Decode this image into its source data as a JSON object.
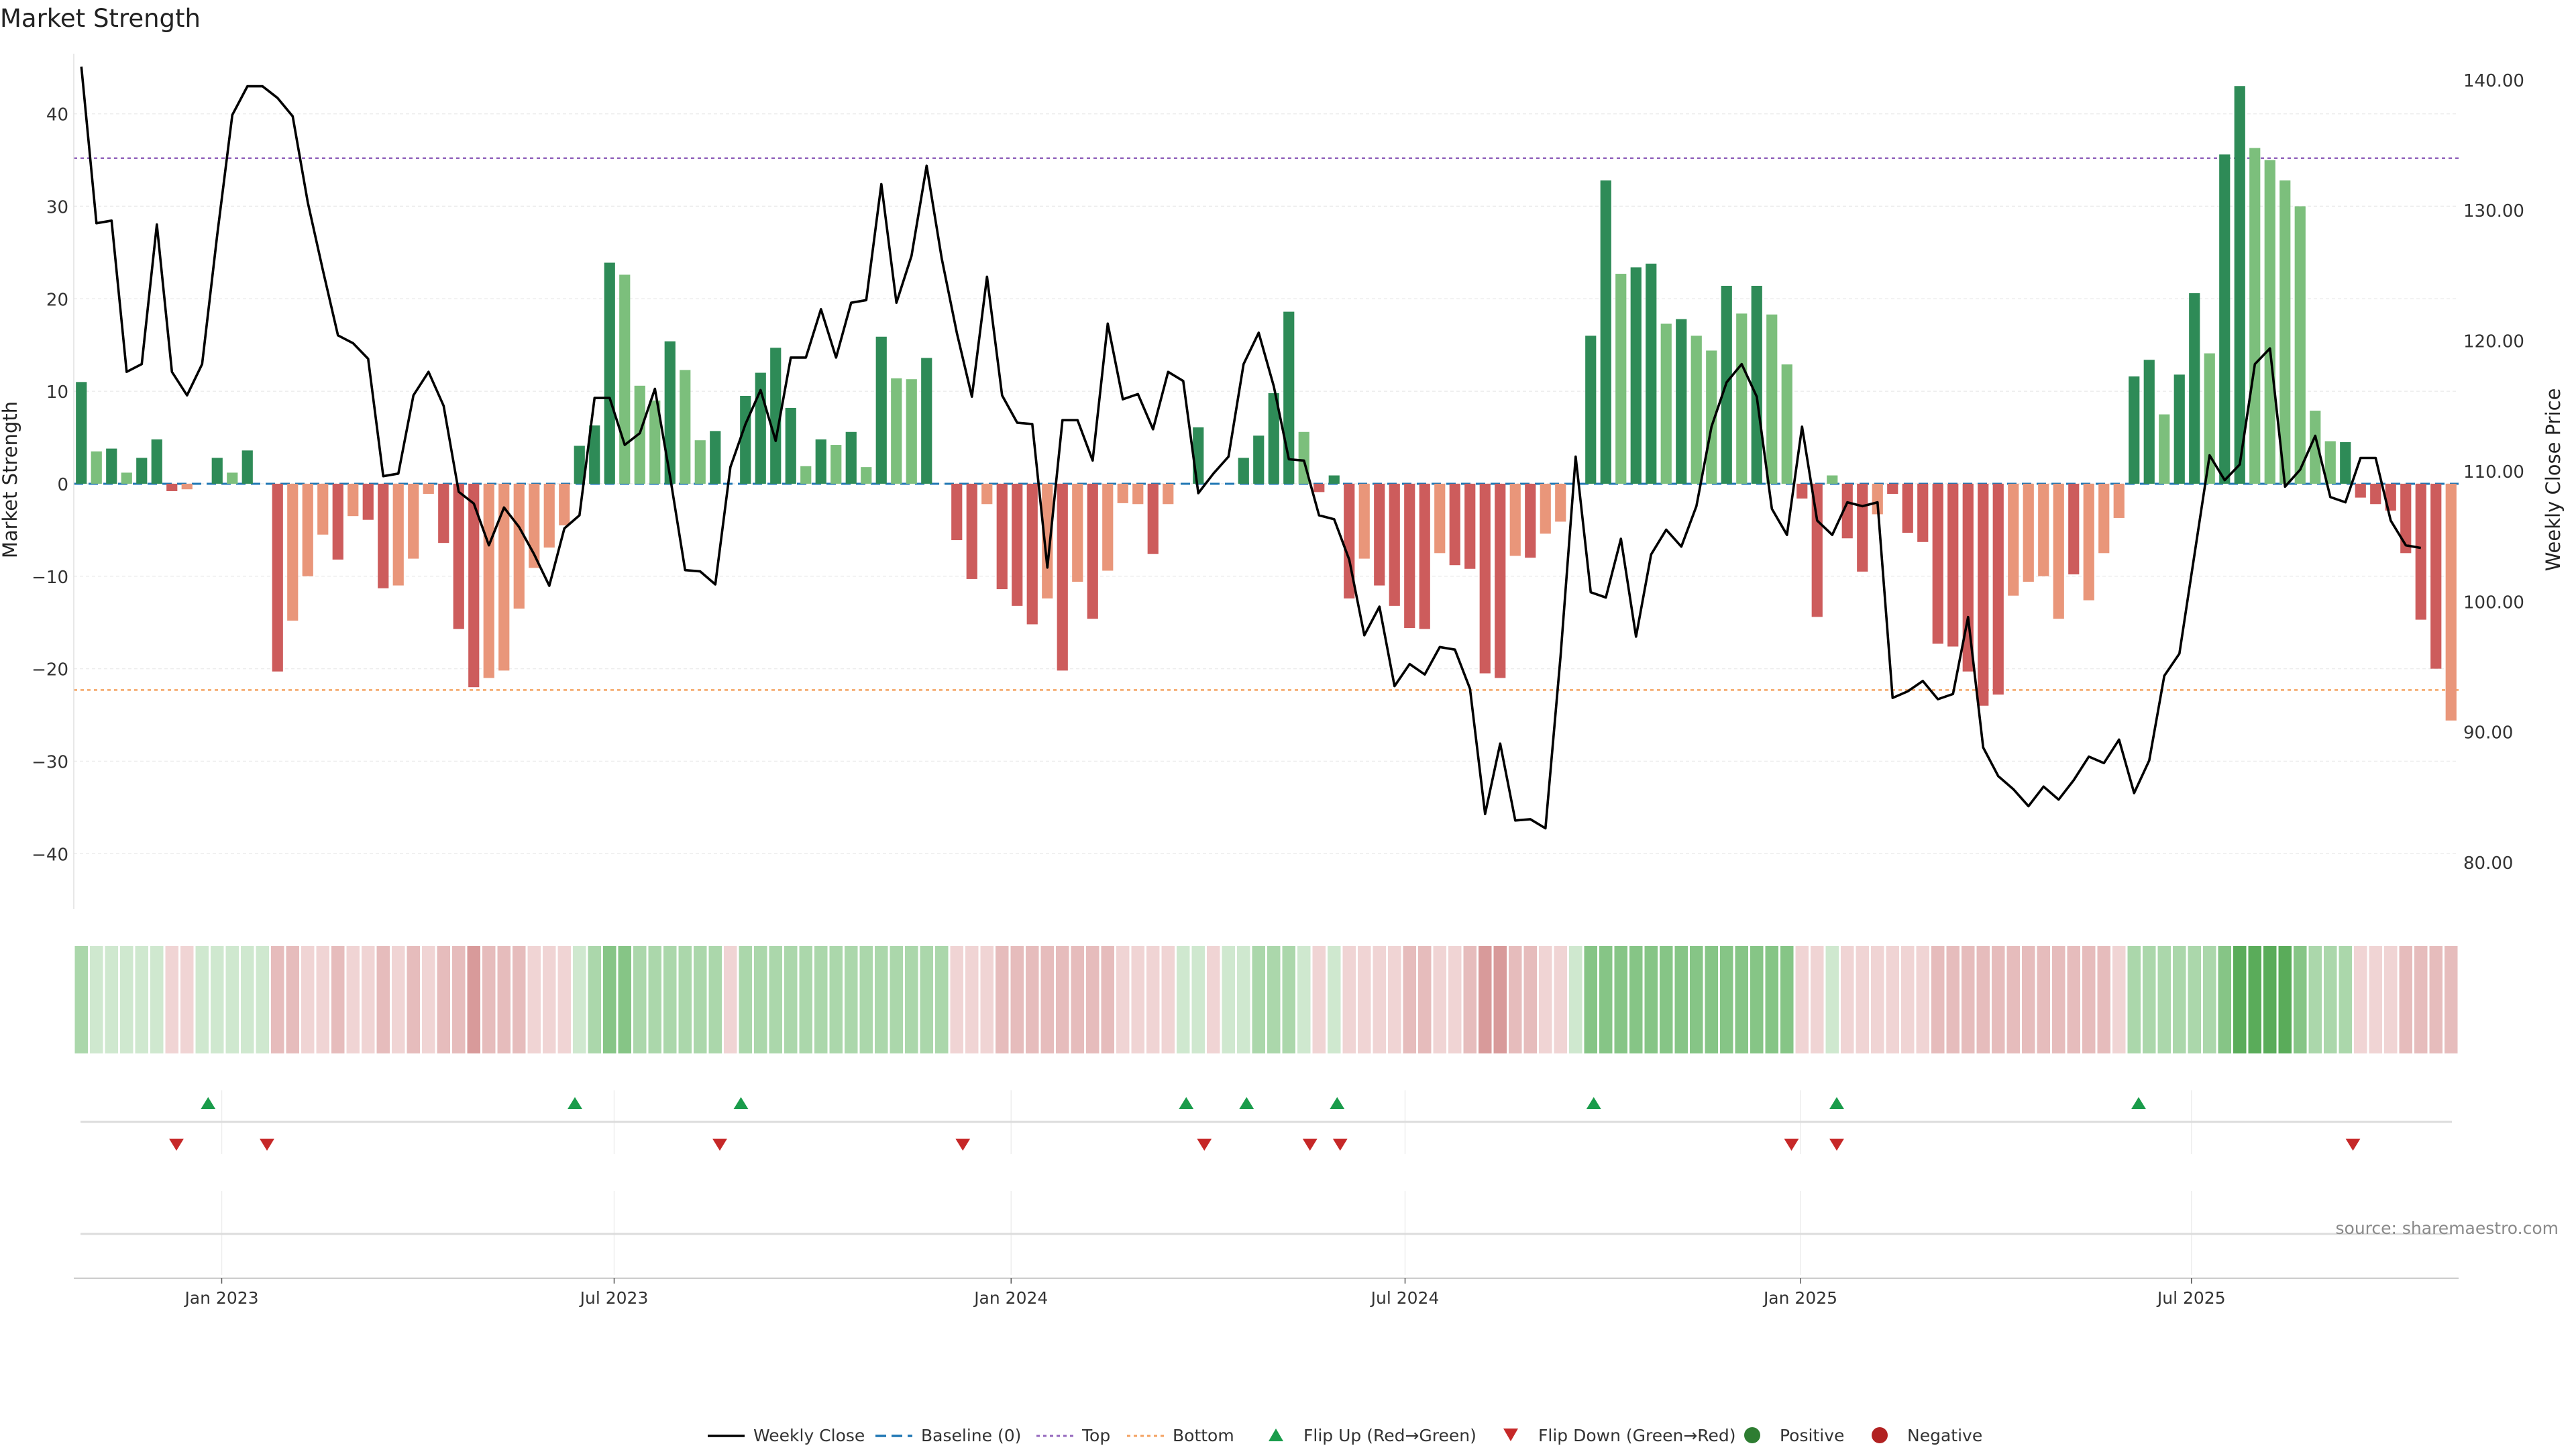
{
  "colors": {
    "dark_green": "#2e8b57",
    "light_green": "#7cbf7c",
    "dark_red": "#cd5c5c",
    "light_red": "#e9967a",
    "price_line": "#000000",
    "top_line": "#9467bd",
    "bottom_line": "#f4a261",
    "baseline": "#1f77b4",
    "flip_up": "#1a9c4b",
    "flip_down": "#c62828",
    "positive_dot": "#2e7d32",
    "negative_dot": "#b22222"
  },
  "chart_data": {
    "type": "bar",
    "title": "Market Strength",
    "ylabel": "Market Strength",
    "y2label": "Weekly Close Price",
    "ylim": [
      -46,
      46.5
    ],
    "y2lim": [
      76.4,
      142
    ],
    "yticks": [
      -40,
      -30,
      -20,
      -10,
      0,
      10,
      20,
      30,
      40
    ],
    "yticklabels": [
      "−40",
      "−30",
      "−20",
      "−10",
      "0",
      "10",
      "20",
      "30",
      "40"
    ],
    "y2ticks": [
      80,
      90,
      100,
      110,
      120,
      130,
      140
    ],
    "y2ticklabels": [
      "80.00",
      "90.00",
      "100.00",
      "110.00",
      "120.00",
      "130.00",
      "140.00"
    ],
    "xticklabels": [
      "Jan 2023",
      "Jul 2023",
      "Jan 2024",
      "Jul 2024",
      "Jan 2025",
      "Jul 2025"
    ],
    "xtick_index": [
      9.3,
      35.3,
      61.6,
      87.7,
      113.9,
      139.8
    ],
    "top_level": 35.2,
    "bottom_level": -22.3,
    "grid": true,
    "legend_position": "bottom-center",
    "strength": [
      11,
      3.5,
      3.8,
      1.2,
      2.8,
      4.8,
      -0.8,
      -0.6,
      0,
      2.8,
      1.2,
      3.6,
      0,
      -20.3,
      -14.8,
      -10,
      -5.5,
      -8.2,
      -3.5,
      -3.9,
      -11.3,
      -11,
      -8.1,
      -1.1,
      -6.4,
      -15.7,
      -22,
      -21,
      -20.2,
      -13.5,
      -9.1,
      -6.9,
      -4.5,
      4.1,
      6.3,
      23.9,
      22.6,
      10.6,
      9,
      15.4,
      12.3,
      4.7,
      5.7,
      0,
      9.5,
      12,
      14.7,
      8.2,
      1.9,
      4.8,
      4.2,
      5.6,
      1.8,
      15.9,
      11.4,
      11.3,
      13.6,
      0,
      -6.1,
      -10.3,
      -2.2,
      -11.4,
      -13.2,
      -15.2,
      -12.4,
      -20.2,
      -10.6,
      -14.6,
      -9.4,
      -2.1,
      -2.2,
      -7.6,
      -2.2,
      0,
      6.1,
      0,
      0,
      2.8,
      5.2,
      9.8,
      18.6,
      5.6,
      -0.9,
      0.9,
      -12.4,
      -8.1,
      -11,
      -13.2,
      -15.6,
      -15.7,
      -7.5,
      -8.8,
      -9.2,
      -20.5,
      -21,
      -7.8,
      -8,
      -5.4,
      -4.1,
      0,
      16,
      32.8,
      22.7,
      23.4,
      23.8,
      17.3,
      17.8,
      16,
      14.4,
      21.4,
      18.4,
      21.4,
      18.3,
      12.9,
      -1.6,
      -14.4,
      0.9,
      -5.9,
      -9.5,
      -3.3,
      -1.1,
      -5.3,
      -6.3,
      -17.3,
      -17.6,
      -20.3,
      -24,
      -22.8,
      -12.1,
      -10.6,
      -10,
      -14.6,
      -9.8,
      -12.6,
      -7.5,
      -3.7,
      11.6,
      13.4,
      7.5,
      11.8,
      20.6,
      14.1,
      35.6,
      43,
      36.3,
      35,
      32.8,
      30,
      7.9,
      4.6,
      4.5,
      -1.5,
      -2.2,
      -2.9,
      -7.5,
      -14.7,
      -20,
      -25.6
    ],
    "strength_shade": [
      "d",
      "l",
      "d",
      "l",
      "d",
      "d",
      "d",
      "l",
      "d",
      "d",
      "l",
      "d",
      "d",
      "d",
      "l",
      "l",
      "l",
      "d",
      "l",
      "d",
      "d",
      "l",
      "l",
      "l",
      "d",
      "d",
      "d",
      "l",
      "l",
      "l",
      "l",
      "l",
      "l",
      "d",
      "d",
      "d",
      "l",
      "l",
      "l",
      "d",
      "l",
      "l",
      "d",
      "d",
      "d",
      "d",
      "d",
      "d",
      "l",
      "d",
      "l",
      "d",
      "l",
      "d",
      "l",
      "l",
      "d",
      "d",
      "d",
      "d",
      "l",
      "d",
      "d",
      "d",
      "l",
      "d",
      "l",
      "d",
      "l",
      "l",
      "l",
      "d",
      "l",
      "d",
      "d",
      "d",
      "d",
      "d",
      "d",
      "d",
      "d",
      "l",
      "d",
      "d",
      "d",
      "l",
      "d",
      "d",
      "d",
      "d",
      "l",
      "d",
      "d",
      "d",
      "d",
      "l",
      "d",
      "l",
      "l",
      "d",
      "d",
      "d",
      "l",
      "d",
      "d",
      "l",
      "d",
      "l",
      "l",
      "d",
      "l",
      "d",
      "l",
      "l",
      "d",
      "d",
      "l",
      "d",
      "d",
      "l",
      "d",
      "d",
      "d",
      "d",
      "d",
      "d",
      "d",
      "d",
      "l",
      "l",
      "l",
      "l",
      "d",
      "l",
      "l",
      "l",
      "d",
      "d",
      "l",
      "d",
      "d",
      "l",
      "d",
      "d",
      "l",
      "l",
      "l",
      "l",
      "l",
      "l",
      "d",
      "d",
      "d",
      "d",
      "d",
      "d",
      "d"
    ],
    "price": [
      141,
      129,
      129.2,
      117.6,
      118.2,
      128.9,
      117.6,
      115.8,
      118.2,
      128.1,
      137.3,
      139.5,
      139.5,
      138.6,
      137.2,
      130.6,
      125.4,
      120.4,
      119.8,
      118.6,
      109.6,
      109.8,
      115.8,
      117.6,
      115,
      108.4,
      107.5,
      104.3,
      107.2,
      105.7,
      103.6,
      101.2,
      105.6,
      106.6,
      115.6,
      115.6,
      112,
      112.9,
      116.3,
      109.6,
      102.4,
      102.3,
      101.3,
      110.3,
      113.6,
      116.2,
      112.3,
      118.7,
      118.7,
      122.4,
      118.7,
      122.9,
      123.1,
      132,
      122.9,
      126.5,
      133.4,
      126.3,
      120.6,
      115.7,
      124.9,
      115.8,
      113.7,
      113.6,
      102.6,
      113.9,
      113.9,
      110.8,
      121.3,
      115.5,
      115.9,
      113.2,
      117.6,
      116.9,
      108.3,
      109.8,
      111.1,
      118.2,
      120.6,
      116.5,
      110.9,
      110.8,
      106.6,
      106.3,
      103.2,
      97.4,
      99.6,
      93.5,
      95.2,
      94.4,
      96.5,
      96.3,
      93.3,
      83.7,
      89.1,
      83.2,
      83.3,
      82.6,
      95.8,
      111.1,
      100.7,
      100.3,
      104.8,
      97.3,
      103.6,
      105.5,
      104.2,
      107.3,
      113.4,
      116.8,
      118.2,
      115.7,
      107.1,
      105.1,
      113.4,
      106.2,
      105.1,
      107.6,
      107.3,
      107.6,
      92.6,
      93.1,
      93.9,
      92.5,
      92.9,
      98.8,
      88.8,
      86.6,
      85.6,
      84.3,
      85.8,
      84.8,
      86.3,
      88.1,
      87.6,
      89.4,
      85.3,
      87.8,
      94.3,
      96,
      103.6,
      111.2,
      109.3,
      110.5,
      118.2,
      119.4,
      108.8,
      110.1,
      112.7,
      108,
      107.6,
      111,
      111,
      106.2,
      104.3,
      104.1
    ],
    "heat_strip": [
      "g2",
      "g1",
      "g1",
      "g1",
      "g1",
      "g1",
      "r1",
      "r1",
      "g1",
      "g1",
      "g1",
      "g1",
      "g1",
      "r2",
      "r2",
      "r1",
      "r1",
      "r2",
      "r1",
      "r1",
      "r2",
      "r1",
      "r2",
      "r1",
      "r2",
      "r2",
      "r3",
      "r2",
      "r2",
      "r2",
      "r1",
      "r1",
      "r1",
      "g1",
      "g2",
      "g3",
      "g3",
      "g2",
      "g2",
      "g2",
      "g2",
      "g2",
      "g2",
      "r1",
      "g2",
      "g2",
      "g2",
      "g2",
      "g2",
      "g2",
      "g2",
      "g2",
      "g2",
      "g2",
      "g2",
      "g2",
      "g2",
      "g2",
      "r1",
      "r1",
      "r1",
      "r2",
      "r2",
      "r2",
      "r2",
      "r2",
      "r2",
      "r2",
      "r2",
      "r1",
      "r1",
      "r1",
      "r1",
      "g1",
      "g1",
      "r1",
      "g1",
      "g1",
      "g2",
      "g2",
      "g2",
      "g1",
      "r1",
      "g1",
      "r1",
      "r1",
      "r1",
      "r1",
      "r2",
      "r2",
      "r1",
      "r1",
      "r2",
      "r3",
      "r3",
      "r2",
      "r2",
      "r1",
      "r1",
      "g1",
      "g3",
      "g3",
      "g3",
      "g3",
      "g3",
      "g3",
      "g3",
      "g3",
      "g3",
      "g3",
      "g3",
      "g3",
      "g3",
      "g3",
      "r1",
      "r1",
      "g1",
      "r1",
      "r1",
      "r1",
      "r1",
      "r1",
      "r1",
      "r2",
      "r2",
      "r2",
      "r2",
      "r2",
      "r2",
      "r2",
      "r2",
      "r2",
      "r2",
      "r2",
      "r2",
      "r1",
      "g2",
      "g2",
      "g2",
      "g2",
      "g2",
      "g2",
      "g3",
      "g4",
      "g4",
      "g4",
      "g4",
      "g3",
      "g2",
      "g2",
      "g2",
      "r1",
      "r1",
      "r1",
      "r2",
      "r2",
      "r2",
      "r2"
    ],
    "flip_up_index": [
      8.4,
      32.7,
      43.7,
      73.2,
      77.2,
      83.2,
      100.2,
      116.3,
      136.3
    ],
    "flip_down_index": [
      6.3,
      12.3,
      42.3,
      58.4,
      74.4,
      81.4,
      83.4,
      113.3,
      116.3,
      150.5
    ]
  },
  "legend": [
    {
      "label": "Weekly Close",
      "marker": "line",
      "color": "#000000"
    },
    {
      "label": "Baseline (0)",
      "marker": "dash",
      "color": "#1f77b4"
    },
    {
      "label": "Top",
      "marker": "dotted",
      "color": "#9467bd"
    },
    {
      "label": "Bottom",
      "marker": "dotted",
      "color": "#f4a261"
    },
    {
      "label": "Flip Up (Red→Green)",
      "marker": "tri-up",
      "color": "#1a9c4b"
    },
    {
      "label": "Flip Down (Green→Red)",
      "marker": "tri-down",
      "color": "#c62828"
    },
    {
      "label": "Positive",
      "marker": "dot",
      "color": "#2e7d32"
    },
    {
      "label": "Negative",
      "marker": "dot",
      "color": "#b22222"
    }
  ],
  "source_label": "source: sharemaestro.com"
}
